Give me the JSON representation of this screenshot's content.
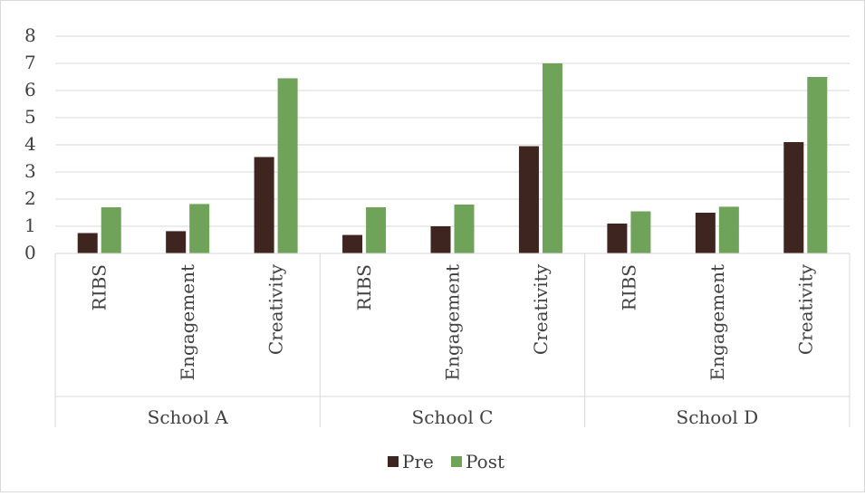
{
  "chart_data": {
    "type": "bar",
    "title": "",
    "xlabel": "",
    "ylabel": "",
    "groups": [
      "School A",
      "School C",
      "School D"
    ],
    "subcategories": [
      "RIBS",
      "Engagement",
      "Creativity"
    ],
    "series": [
      {
        "name": "Pre",
        "color": "#3f2520",
        "values": [
          0.75,
          0.82,
          3.55,
          0.68,
          1.0,
          3.95,
          1.1,
          1.5,
          4.1
        ]
      },
      {
        "name": "Post",
        "color": "#70a35a",
        "values": [
          1.7,
          1.82,
          6.45,
          1.7,
          1.8,
          7.0,
          1.55,
          1.72,
          6.5
        ]
      }
    ],
    "ylim": [
      0,
      8
    ],
    "yticks": [
      "0",
      "1",
      "2",
      "3",
      "4",
      "5",
      "6",
      "7",
      "8"
    ],
    "grid": true,
    "legend_position": "bottom",
    "colors": {
      "gridline": "#d9d9d9",
      "axis": "#d9d9d9",
      "text": "#404040"
    }
  }
}
